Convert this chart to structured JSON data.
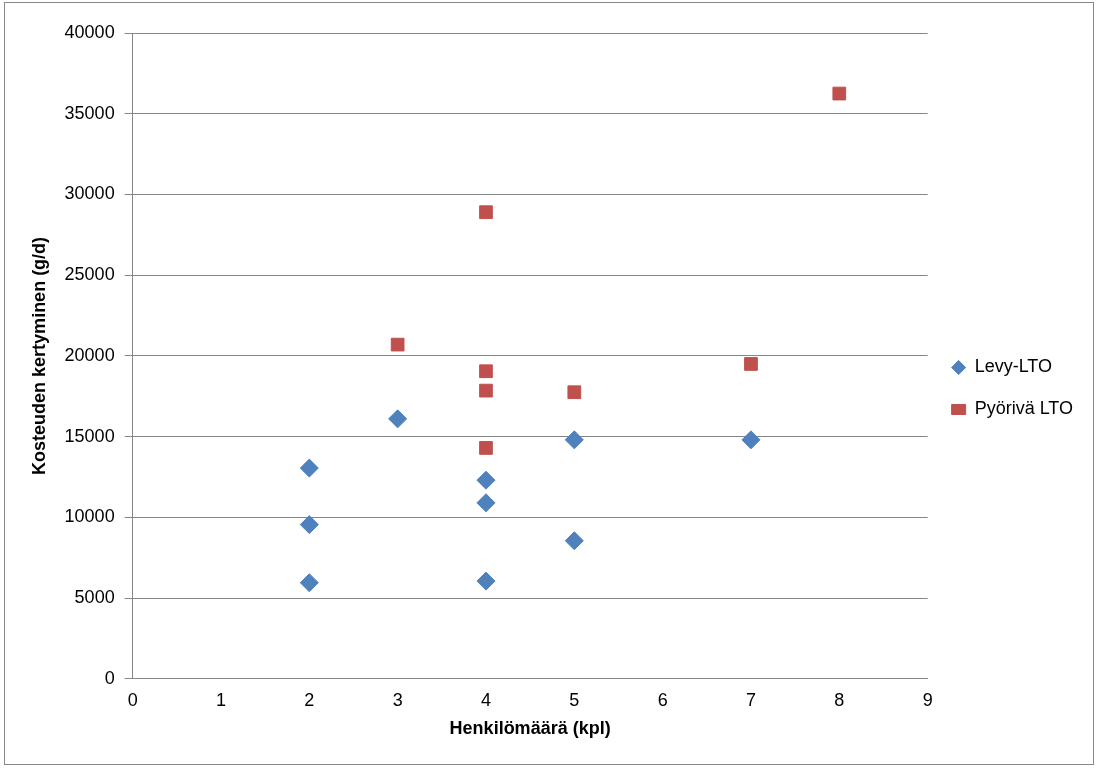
{
  "chart_data": {
    "type": "scatter",
    "xlabel": "Henkilömäärä (kpl)",
    "ylabel": "Kosteuden kertyminen (g/d)",
    "xlim": [
      0,
      9
    ],
    "xticks": [
      0,
      1,
      2,
      3,
      4,
      5,
      6,
      7,
      8,
      9
    ],
    "ylim": [
      0,
      40000
    ],
    "yticks": [
      0,
      5000,
      10000,
      15000,
      20000,
      25000,
      30000,
      35000,
      40000
    ],
    "grid": "y",
    "legend": "right",
    "series": [
      {
        "name": "Levy-LTO",
        "color": "#4f81bd",
        "marker": "diamond",
        "x": [
          2,
          2,
          2,
          3,
          4,
          4,
          4,
          5,
          5,
          7
        ],
        "values": [
          13050,
          9550,
          5950,
          16100,
          12300,
          10900,
          6050,
          14800,
          8550,
          14800
        ]
      },
      {
        "name": "Pyörivä LTO",
        "color": "#c0504d",
        "marker": "square",
        "x": [
          3,
          4,
          4,
          4,
          4,
          5,
          7,
          8
        ],
        "values": [
          20700,
          28900,
          19050,
          17850,
          14300,
          17750,
          19500,
          36250
        ]
      }
    ]
  }
}
